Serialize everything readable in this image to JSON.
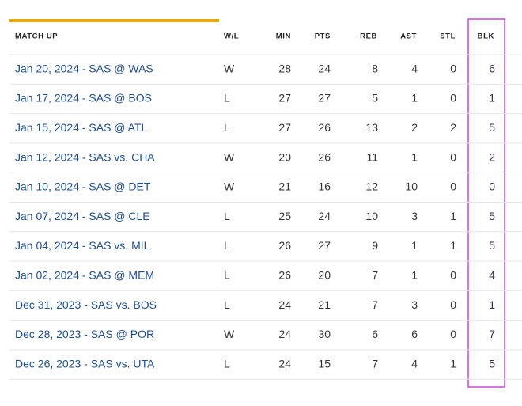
{
  "table": {
    "headers": [
      "MATCH UP",
      "W/L",
      "MIN",
      "PTS",
      "REB",
      "AST",
      "STL",
      "BLK"
    ],
    "rows": [
      [
        "Jan 20, 2024 - SAS @ WAS",
        "W",
        28,
        24,
        8,
        4,
        0,
        6
      ],
      [
        "Jan 17, 2024 - SAS @ BOS",
        "L",
        27,
        27,
        5,
        1,
        0,
        1
      ],
      [
        "Jan 15, 2024 - SAS @ ATL",
        "L",
        27,
        26,
        13,
        2,
        2,
        5
      ],
      [
        "Jan 12, 2024 - SAS vs. CHA",
        "W",
        20,
        26,
        11,
        1,
        0,
        2
      ],
      [
        "Jan 10, 2024 - SAS @ DET",
        "W",
        21,
        16,
        12,
        10,
        0,
        0
      ],
      [
        "Jan 07, 2024 - SAS @ CLE",
        "L",
        25,
        24,
        10,
        3,
        1,
        5
      ],
      [
        "Jan 04, 2024 - SAS vs. MIL",
        "L",
        26,
        27,
        9,
        1,
        1,
        5
      ],
      [
        "Jan 02, 2024 - SAS @ MEM",
        "L",
        26,
        20,
        7,
        1,
        0,
        4
      ],
      [
        "Dec 31, 2023 - SAS vs. BOS",
        "L",
        24,
        21,
        7,
        3,
        0,
        1
      ],
      [
        "Dec 28, 2023 - SAS @ POR",
        "W",
        24,
        30,
        6,
        6,
        0,
        7
      ],
      [
        "Dec 26, 2023 - SAS vs. UTA",
        "L",
        24,
        15,
        7,
        4,
        1,
        5
      ]
    ]
  }
}
